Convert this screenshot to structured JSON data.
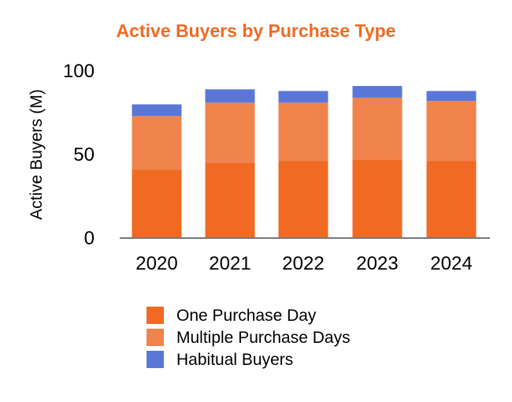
{
  "chart_data": {
    "type": "bar",
    "stacked": true,
    "title": "Active Buyers by Purchase Type",
    "xlabel": "",
    "ylabel": "Active Buyers (M)",
    "ylim": [
      0,
      100
    ],
    "yticks": [
      "0",
      "50",
      "100"
    ],
    "grid": false,
    "legend_position": "bottom",
    "categories": [
      "2020",
      "2021",
      "2022",
      "2023",
      "2024"
    ],
    "series": [
      {
        "name": "One Purchase Day",
        "color": "#f06a24",
        "values": [
          41,
          45,
          46,
          47,
          46
        ]
      },
      {
        "name": "Multiple Purchase Days",
        "color": "#f0834c",
        "values": [
          32,
          36,
          35,
          37,
          36
        ]
      },
      {
        "name": "Habitual Buyers",
        "color": "#5a77d8",
        "values": [
          7,
          8,
          7,
          7,
          6
        ]
      }
    ],
    "title_color": "#f06a24",
    "axis_color": "#777777"
  }
}
